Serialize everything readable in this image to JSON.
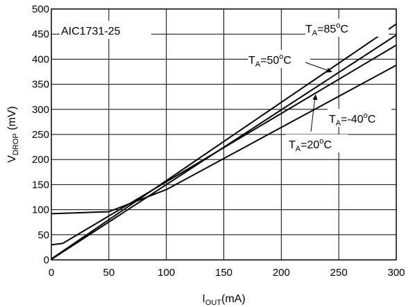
{
  "chart_data": {
    "type": "line",
    "title": "AIC1731-25",
    "xlabel": {
      "main": "I",
      "sub": "OUT",
      "suffix": "(mA)"
    },
    "ylabel": {
      "main": "V",
      "sub": "DROP",
      "suffix": " (mV)"
    },
    "xlim": [
      0,
      300
    ],
    "ylim": [
      0,
      500
    ],
    "xticks": [
      0,
      50,
      100,
      150,
      200,
      250,
      300
    ],
    "yticks": [
      0,
      50,
      100,
      150,
      200,
      250,
      300,
      350,
      400,
      450,
      500
    ],
    "grid": true,
    "series": [
      {
        "name": "T_A=85°C",
        "label": {
          "pre": "T",
          "sub": "A",
          "mid": "=85",
          "sup": "o",
          "post": "C"
        },
        "points": [
          [
            0,
            2
          ],
          [
            300,
            470
          ]
        ]
      },
      {
        "name": "T_A=50°C",
        "label": {
          "pre": "T",
          "sub": "A",
          "mid": "=50",
          "sup": "o",
          "post": "C"
        },
        "points": [
          [
            0,
            1
          ],
          [
            300,
            448
          ]
        ]
      },
      {
        "name": "T_A=20°C",
        "label": {
          "pre": "T",
          "sub": "A",
          "mid": "=20",
          "sup": "o",
          "post": "C"
        },
        "points": [
          [
            0,
            30
          ],
          [
            10,
            33
          ],
          [
            300,
            428
          ]
        ]
      },
      {
        "name": "T_A=-40°C",
        "label": {
          "pre": "T",
          "sub": "A",
          "mid": "=-40",
          "sup": "o",
          "post": "C"
        },
        "points": [
          [
            0,
            92
          ],
          [
            50,
            96
          ],
          [
            100,
            140
          ],
          [
            300,
            388
          ]
        ]
      }
    ]
  }
}
